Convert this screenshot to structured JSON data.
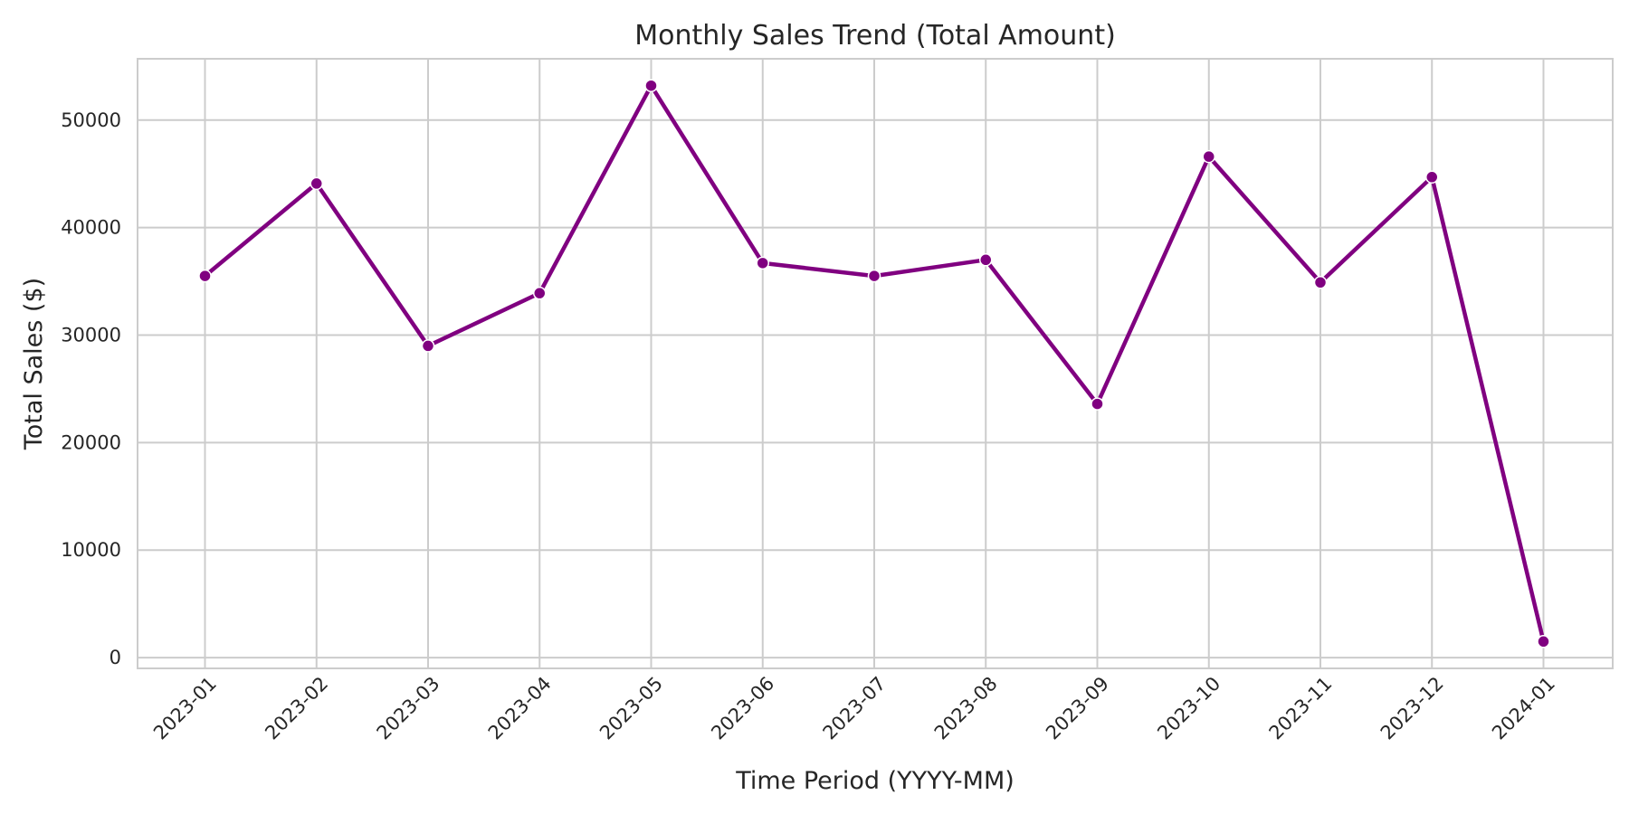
{
  "chart_data": {
    "type": "line",
    "title": "Monthly Sales Trend (Total Amount)",
    "xlabel": "Time Period (YYYY-MM)",
    "ylabel": "Total Sales ($)",
    "categories": [
      "2023-01",
      "2023-02",
      "2023-03",
      "2023-04",
      "2023-05",
      "2023-06",
      "2023-07",
      "2023-08",
      "2023-09",
      "2023-10",
      "2023-11",
      "2023-12",
      "2024-01"
    ],
    "series": [
      {
        "values": [
          35500,
          44100,
          29000,
          33900,
          53200,
          36700,
          35500,
          37000,
          23600,
          46600,
          34900,
          44700,
          1500
        ]
      }
    ],
    "ylim": [
      -1000,
      55700
    ],
    "yticks": [
      0,
      10000,
      20000,
      30000,
      40000,
      50000
    ],
    "grid": true,
    "line_color": "#800080",
    "marker": "circle"
  }
}
